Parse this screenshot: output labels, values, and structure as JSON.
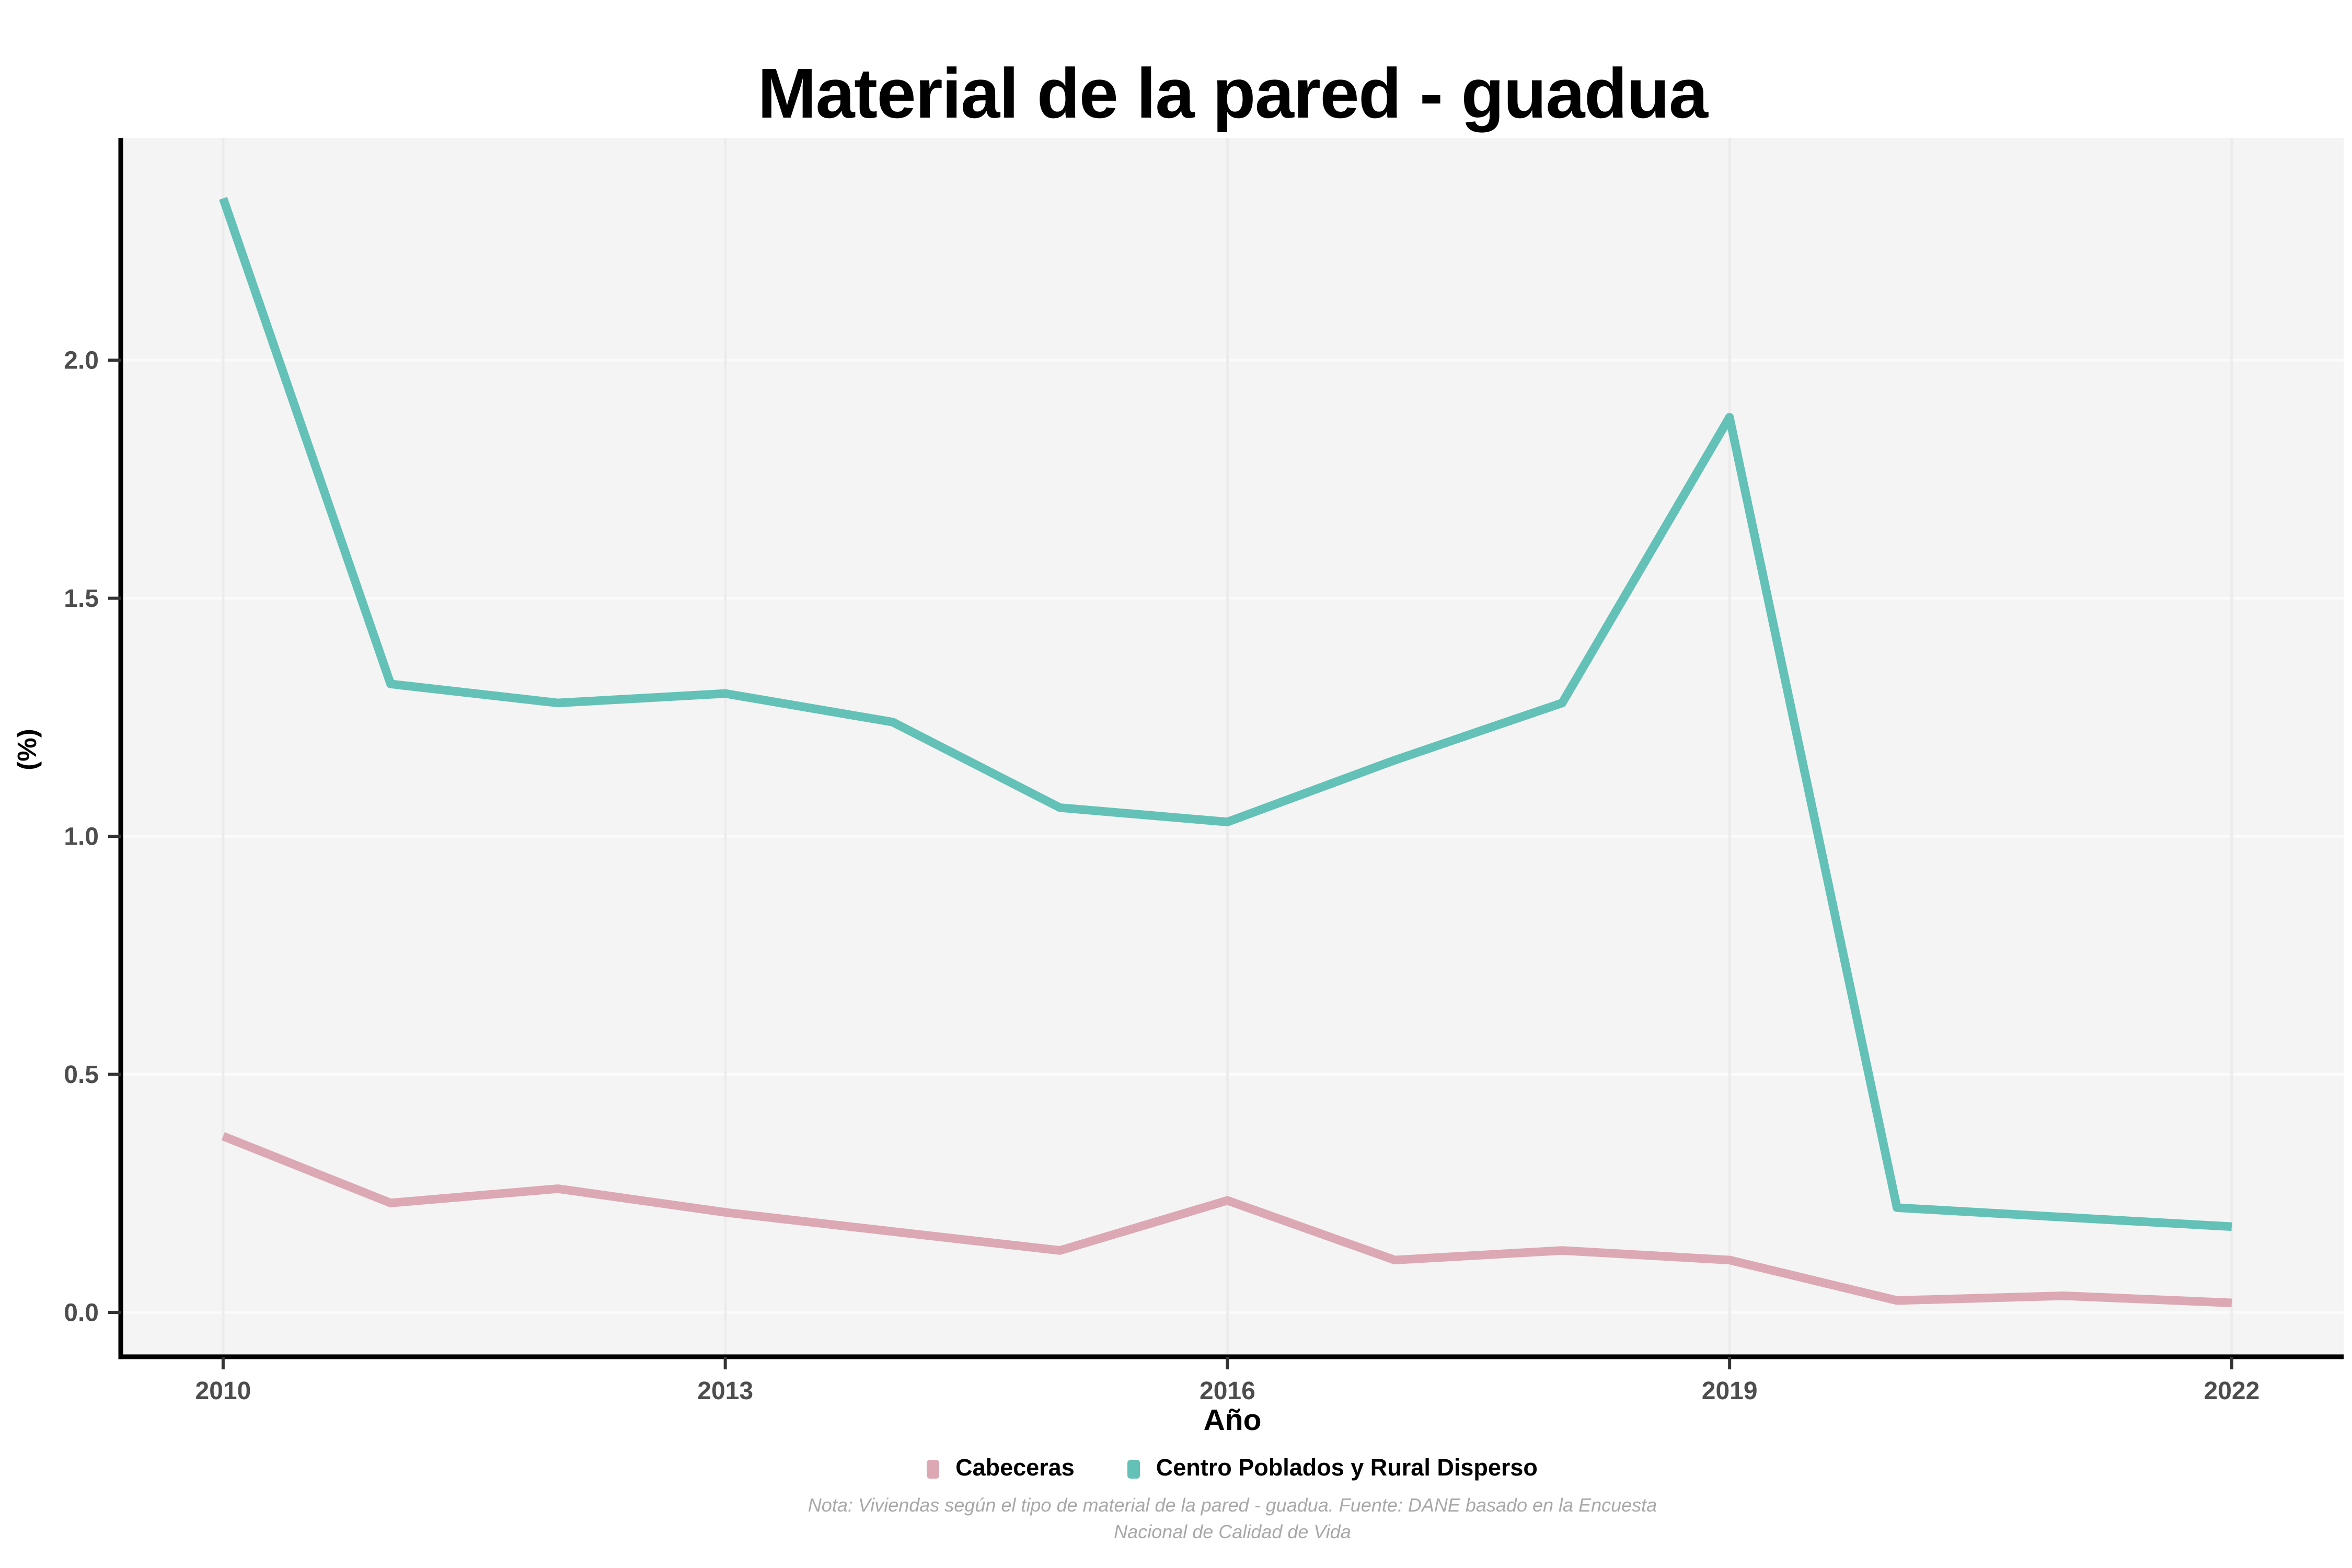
{
  "title": "Material de la pared - guadua",
  "chart_data": {
    "type": "line",
    "x": [
      2010,
      2011,
      2012,
      2013,
      2014,
      2015,
      2016,
      2017,
      2018,
      2019,
      2020,
      2021,
      2022
    ],
    "series": [
      {
        "name": "Cabeceras",
        "color": "#DCA8B3",
        "values": [
          0.37,
          0.23,
          0.26,
          0.21,
          0.17,
          0.13,
          0.235,
          0.11,
          0.13,
          0.11,
          0.025,
          0.035,
          0.02
        ]
      },
      {
        "name": "Centro Poblados y Rural Disperso",
        "color": "#63C1B7",
        "values": [
          2.34,
          1.32,
          1.28,
          1.3,
          1.24,
          1.06,
          1.03,
          1.16,
          1.28,
          1.88,
          0.22,
          0.2,
          0.18
        ]
      }
    ],
    "title": "Material de la pared - guadua",
    "xlabel": "Año",
    "ylabel": "(%)",
    "xticks": [
      2010,
      2013,
      2016,
      2019,
      2022
    ],
    "yticks": [
      0.0,
      0.5,
      1.0,
      1.5,
      2.0
    ],
    "ylim": [
      -0.09,
      2.47
    ],
    "grid": "major",
    "legend_position": "bottom",
    "panel_bg": "#F4F4F4",
    "hgrid_color": "#FBFBFB",
    "vgrid_color": "#ECECEC",
    "axis_line_color": "#000000",
    "tick_label_color": "#4D4D4D"
  },
  "caption": {
    "line1": "Nota: Viviendas según el tipo de material de la pared - guadua. Fuente: DANE basado en la Encuesta",
    "line2": "Nacional de Calidad de Vida"
  }
}
